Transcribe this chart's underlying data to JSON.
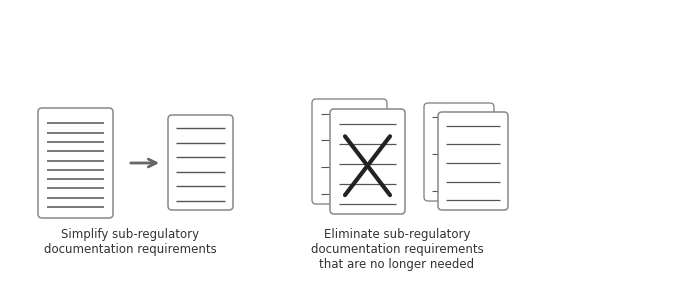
{
  "bg_color": "#ffffff",
  "doc_border_color": "#888888",
  "doc_fill_color": "#ffffff",
  "line_color": "#555555",
  "arrow_color": "#666666",
  "text_color": "#333333",
  "label1": "Simplify sub-regulatory\ndocumentation requirements",
  "label2": "Eliminate sub-regulatory\ndocumentation requirements\nthat are no longer needed",
  "label_fontsize": 8.5
}
